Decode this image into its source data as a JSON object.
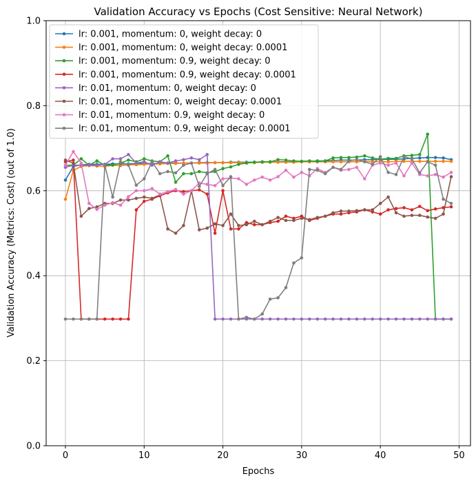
{
  "chart_data": {
    "type": "line",
    "title": "Validation Accuracy vs Epochs (Cost Sensitive: Neural Network)",
    "xlabel": "Epochs",
    "ylabel": "Validation Accuracy (Metrics: Cost) (out of 1.0)",
    "xlim": [
      -2.45,
      51.45
    ],
    "ylim": [
      0.0,
      1.0
    ],
    "xticks": [
      0,
      10,
      20,
      30,
      40,
      50
    ],
    "yticks": [
      0.0,
      0.2,
      0.4,
      0.6,
      0.8,
      1.0
    ],
    "xtick_labels": [
      "0",
      "10",
      "20",
      "30",
      "40",
      "50"
    ],
    "ytick_labels": [
      "0.0",
      "0.2",
      "0.4",
      "0.6",
      "0.8",
      "1.0"
    ],
    "grid": true,
    "legend_position": "upper-left",
    "x": [
      0,
      1,
      2,
      3,
      4,
      5,
      6,
      7,
      8,
      9,
      10,
      11,
      12,
      13,
      14,
      15,
      16,
      17,
      18,
      19,
      20,
      21,
      22,
      23,
      24,
      25,
      26,
      27,
      28,
      29,
      30,
      31,
      32,
      33,
      34,
      35,
      36,
      37,
      38,
      39,
      40,
      41,
      42,
      43,
      44,
      45,
      46,
      47,
      48,
      49
    ],
    "series": [
      {
        "name": "lr: 0.001, momentum: 0, weight decay: 0",
        "color": "#1f77b4",
        "values": [
          0.625,
          0.657,
          0.661,
          0.662,
          0.662,
          0.662,
          0.663,
          0.663,
          0.663,
          0.664,
          0.664,
          0.664,
          0.664,
          0.665,
          0.665,
          0.665,
          0.665,
          0.666,
          0.666,
          0.666,
          0.666,
          0.667,
          0.667,
          0.667,
          0.667,
          0.667,
          0.668,
          0.668,
          0.668,
          0.668,
          0.669,
          0.669,
          0.67,
          0.67,
          0.671,
          0.672,
          0.672,
          0.672,
          0.673,
          0.673,
          0.673,
          0.674,
          0.674,
          0.675,
          0.676,
          0.677,
          0.678,
          0.678,
          0.677,
          0.673
        ]
      },
      {
        "name": "lr: 0.001, momentum: 0, weight decay: 0.0001",
        "color": "#ff7f0e",
        "values": [
          0.58,
          0.648,
          0.657,
          0.659,
          0.658,
          0.657,
          0.66,
          0.659,
          0.661,
          0.661,
          0.662,
          0.663,
          0.663,
          0.664,
          0.664,
          0.665,
          0.665,
          0.665,
          0.665,
          0.666,
          0.666,
          0.666,
          0.666,
          0.666,
          0.666,
          0.667,
          0.667,
          0.667,
          0.667,
          0.667,
          0.668,
          0.668,
          0.668,
          0.668,
          0.668,
          0.668,
          0.668,
          0.668,
          0.669,
          0.668,
          0.668,
          0.668,
          0.669,
          0.669,
          0.669,
          0.669,
          0.669,
          0.669,
          0.669,
          0.669
        ]
      },
      {
        "name": "lr: 0.001, momentum: 0.9, weight decay: 0",
        "color": "#2ca02c",
        "values": [
          0.66,
          0.66,
          0.675,
          0.66,
          0.67,
          0.66,
          0.66,
          0.665,
          0.672,
          0.668,
          0.675,
          0.67,
          0.668,
          0.682,
          0.62,
          0.64,
          0.64,
          0.645,
          0.642,
          0.645,
          0.652,
          0.656,
          0.662,
          0.665,
          0.667,
          0.668,
          0.668,
          0.673,
          0.672,
          0.67,
          0.669,
          0.67,
          0.669,
          0.67,
          0.677,
          0.678,
          0.678,
          0.679,
          0.682,
          0.677,
          0.674,
          0.676,
          0.676,
          0.682,
          0.683,
          0.685,
          0.733,
          0.298,
          0.298,
          0.298
        ]
      },
      {
        "name": "lr: 0.001, momentum: 0.9, weight decay: 0.0001",
        "color": "#d62728",
        "values": [
          0.668,
          0.672,
          0.298,
          0.298,
          0.298,
          0.298,
          0.298,
          0.298,
          0.298,
          0.555,
          0.575,
          0.58,
          0.588,
          0.595,
          0.6,
          0.598,
          0.6,
          0.602,
          0.592,
          0.5,
          0.6,
          0.51,
          0.51,
          0.525,
          0.52,
          0.52,
          0.525,
          0.528,
          0.54,
          0.535,
          0.54,
          0.53,
          0.535,
          0.54,
          0.545,
          0.545,
          0.548,
          0.55,
          0.555,
          0.55,
          0.545,
          0.555,
          0.558,
          0.56,
          0.555,
          0.563,
          0.553,
          0.557,
          0.56,
          0.562
        ]
      },
      {
        "name": "lr: 0.01, momentum: 0, weight decay: 0",
        "color": "#9467bd",
        "values": [
          0.655,
          0.66,
          0.66,
          0.66,
          0.66,
          0.662,
          0.675,
          0.675,
          0.685,
          0.665,
          0.668,
          0.66,
          0.668,
          0.665,
          0.67,
          0.673,
          0.677,
          0.673,
          0.685,
          0.298,
          0.298,
          0.298,
          0.298,
          0.298,
          0.298,
          0.298,
          0.298,
          0.298,
          0.298,
          0.298,
          0.298,
          0.298,
          0.298,
          0.298,
          0.298,
          0.298,
          0.298,
          0.298,
          0.298,
          0.298,
          0.298,
          0.298,
          0.298,
          0.298,
          0.298,
          0.298,
          0.298,
          0.298,
          0.298,
          0.298
        ]
      },
      {
        "name": "lr: 0.01, momentum: 0, weight decay: 0.0001",
        "color": "#8c564b",
        "values": [
          0.672,
          0.665,
          0.54,
          0.558,
          0.562,
          0.57,
          0.57,
          0.578,
          0.578,
          0.582,
          0.585,
          0.582,
          0.59,
          0.51,
          0.5,
          0.518,
          0.6,
          0.508,
          0.512,
          0.522,
          0.518,
          0.545,
          0.518,
          0.52,
          0.528,
          0.52,
          0.528,
          0.537,
          0.53,
          0.53,
          0.535,
          0.532,
          0.537,
          0.54,
          0.548,
          0.552,
          0.552,
          0.553,
          0.555,
          0.555,
          0.57,
          0.585,
          0.548,
          0.54,
          0.542,
          0.542,
          0.538,
          0.535,
          0.545,
          0.633
        ]
      },
      {
        "name": "lr: 0.01, momentum: 0.9, weight decay: 0",
        "color": "#e377c2",
        "values": [
          0.66,
          0.692,
          0.665,
          0.57,
          0.556,
          0.566,
          0.572,
          0.566,
          0.586,
          0.6,
          0.6,
          0.605,
          0.592,
          0.598,
          0.603,
          0.592,
          0.6,
          0.618,
          0.615,
          0.612,
          0.628,
          0.63,
          0.628,
          0.615,
          0.625,
          0.632,
          0.625,
          0.633,
          0.648,
          0.632,
          0.643,
          0.635,
          0.652,
          0.643,
          0.655,
          0.648,
          0.65,
          0.655,
          0.628,
          0.66,
          0.665,
          0.66,
          0.665,
          0.635,
          0.665,
          0.638,
          0.635,
          0.638,
          0.632,
          0.643
        ]
      },
      {
        "name": "lr: 0.01, momentum: 0.9, weight decay: 0.0001",
        "color": "#7f7f7f",
        "values": [
          0.298,
          0.298,
          0.298,
          0.298,
          0.298,
          0.66,
          0.585,
          0.668,
          0.66,
          0.613,
          0.628,
          0.668,
          0.64,
          0.645,
          0.642,
          0.66,
          0.665,
          0.61,
          0.64,
          0.65,
          0.612,
          0.633,
          0.298,
          0.302,
          0.298,
          0.31,
          0.345,
          0.348,
          0.372,
          0.43,
          0.442,
          0.65,
          0.648,
          0.64,
          0.655,
          0.65,
          0.67,
          0.673,
          0.668,
          0.662,
          0.68,
          0.643,
          0.638,
          0.68,
          0.675,
          0.642,
          0.668,
          0.66,
          0.58,
          0.57
        ]
      }
    ]
  }
}
